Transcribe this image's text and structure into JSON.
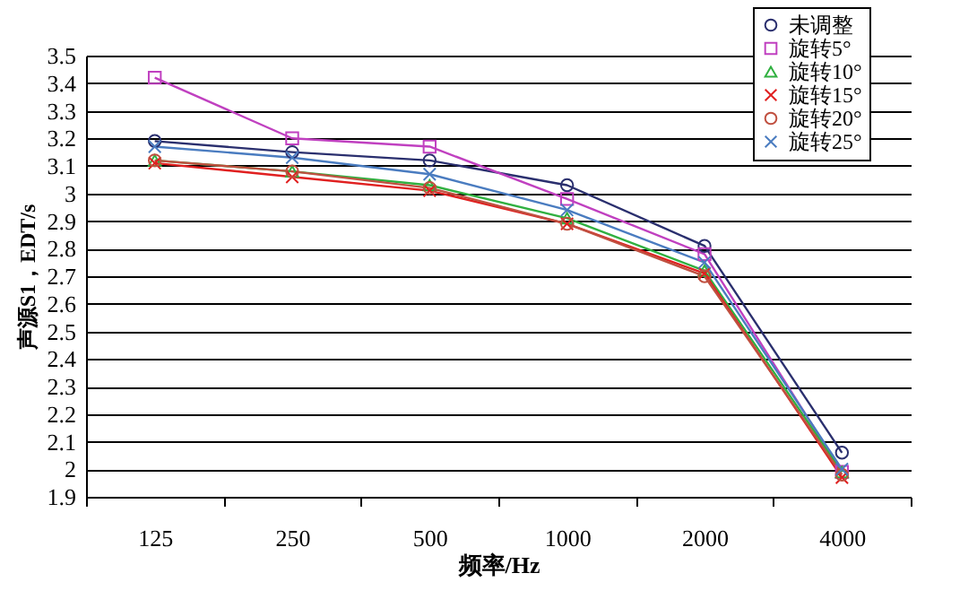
{
  "chart_data": {
    "type": "line",
    "xlabel": "频率/Hz",
    "ylabel": "声源S1，EDT/s",
    "categories": [
      "125",
      "250",
      "500",
      "1000",
      "2000",
      "4000"
    ],
    "ylim": [
      1.9,
      3.5
    ],
    "yticks": [
      1.9,
      2,
      2.1,
      2.2,
      2.3,
      2.4,
      2.5,
      2.6,
      2.7,
      2.8,
      2.9,
      3,
      3.1,
      3.2,
      3.3,
      3.4,
      3.5
    ],
    "grid": "y",
    "legend": "top right",
    "series": [
      {
        "name": "未调整",
        "color": "#2a2f6e",
        "marker": "circle",
        "values": [
          3.19,
          3.15,
          3.12,
          3.03,
          2.81,
          2.06
        ]
      },
      {
        "name": "旋转5°",
        "color": "#c040c0",
        "marker": "square",
        "values": [
          3.42,
          3.2,
          3.17,
          2.98,
          2.78,
          1.99
        ]
      },
      {
        "name": "旋转10°",
        "color": "#30b040",
        "marker": "triangle",
        "values": [
          3.12,
          3.08,
          3.03,
          2.91,
          2.72,
          1.99
        ]
      },
      {
        "name": "旋转15°",
        "color": "#e02020",
        "marker": "cross",
        "values": [
          3.11,
          3.06,
          3.01,
          2.89,
          2.71,
          1.97
        ]
      },
      {
        "name": "旋转20°",
        "color": "#c05040",
        "marker": "circle",
        "values": [
          3.12,
          3.08,
          3.02,
          2.89,
          2.7,
          1.98
        ]
      },
      {
        "name": "旋转25°",
        "color": "#4a7cc0",
        "marker": "cross",
        "values": [
          3.17,
          3.13,
          3.07,
          2.94,
          2.75,
          2.0
        ]
      }
    ]
  }
}
